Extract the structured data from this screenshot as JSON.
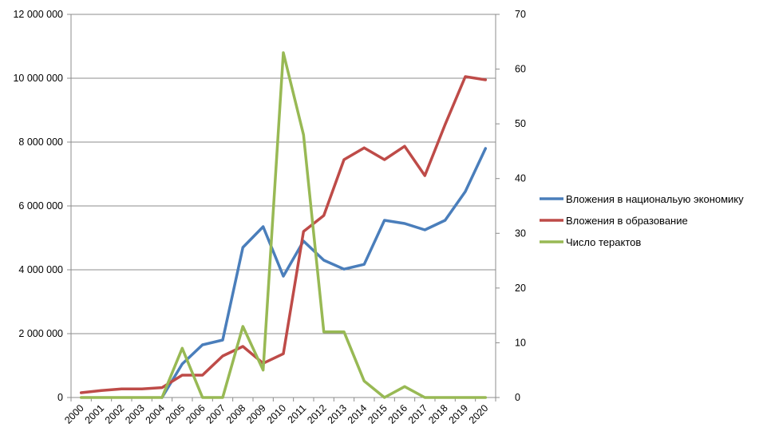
{
  "chart_data": {
    "type": "line",
    "title": "",
    "xlabel": "",
    "ylabel": "",
    "categories": [
      "2000",
      "2001",
      "2002",
      "2003",
      "2004",
      "2005",
      "2006",
      "2007",
      "2008",
      "2009",
      "2010",
      "2011",
      "2012",
      "2013",
      "2014",
      "2015",
      "2016",
      "2017",
      "2018",
      "2019",
      "2020"
    ],
    "y_left": {
      "min": 0,
      "max": 12000000,
      "ticks": [
        0,
        2000000,
        4000000,
        6000000,
        8000000,
        10000000,
        12000000
      ],
      "tick_labels": [
        "0",
        "2 000 000",
        "4 000 000",
        "6 000 000",
        "8 000 000",
        "10 000 000",
        "12 000 000"
      ]
    },
    "y_right": {
      "min": 0,
      "max": 70,
      "ticks": [
        0,
        10,
        20,
        30,
        40,
        50,
        60,
        70
      ],
      "tick_labels": [
        "0",
        "10",
        "20",
        "30",
        "40",
        "50",
        "60",
        "70"
      ]
    },
    "grid": true,
    "legend_position": "right",
    "series": [
      {
        "name": "Вложения в национальую экономику",
        "axis": "left",
        "color": "#4a7ebb",
        "values": [
          null,
          null,
          null,
          null,
          0,
          1050000,
          1650000,
          1800000,
          4700000,
          5350000,
          3800000,
          4900000,
          4300000,
          4020000,
          4170000,
          5550000,
          5450000,
          5250000,
          5550000,
          6450000,
          7800000
        ]
      },
      {
        "name": "Вложения в образование",
        "axis": "left",
        "color": "#be4b48",
        "values": [
          150000,
          220000,
          270000,
          270000,
          310000,
          700000,
          700000,
          1300000,
          1600000,
          1070000,
          1370000,
          5200000,
          5700000,
          7450000,
          7820000,
          7450000,
          7870000,
          6950000,
          8550000,
          10050000,
          9950000
        ]
      },
      {
        "name": "Число терактов",
        "axis": "right",
        "color": "#98b954",
        "values": [
          0,
          0,
          0,
          0,
          0,
          9,
          0,
          0,
          13,
          5,
          63,
          48,
          12,
          12,
          3,
          0,
          2,
          0,
          0,
          0,
          0
        ]
      }
    ]
  }
}
